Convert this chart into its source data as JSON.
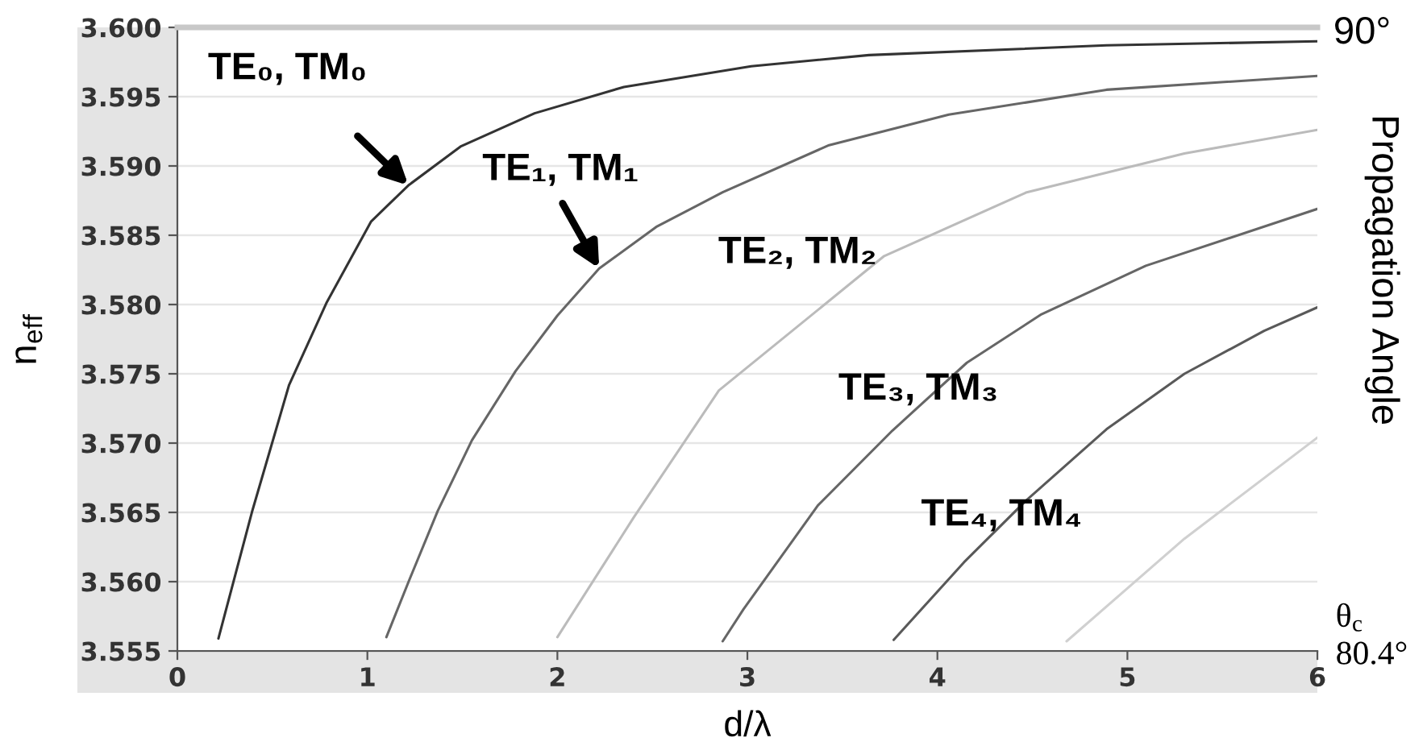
{
  "chart_data": {
    "type": "line",
    "xlabel": "d/λ",
    "ylabel": "n$_{eff}$",
    "xlim": [
      0,
      6
    ],
    "ylim": [
      3.555,
      3.6
    ],
    "xticks": [
      0,
      1,
      2,
      3,
      4,
      5,
      6
    ],
    "yticks": [
      {
        "value": 3.555,
        "label": "3.555"
      },
      {
        "value": 3.56,
        "label": "3.560"
      },
      {
        "value": 3.565,
        "label": "3.565"
      },
      {
        "value": 3.57,
        "label": "3.570"
      },
      {
        "value": 3.575,
        "label": "3.575"
      },
      {
        "value": 3.58,
        "label": "3.580"
      },
      {
        "value": 3.585,
        "label": "3.585"
      },
      {
        "value": 3.59,
        "label": "3.590"
      },
      {
        "value": 3.595,
        "label": "3.595"
      },
      {
        "value": 3.6,
        "label": "3.600"
      }
    ],
    "grid": "y",
    "line_style": "solid",
    "marker": "none",
    "series": [
      {
        "color": "#333333",
        "x": [
          0.216,
          0.392,
          0.588,
          0.784,
          1.02,
          1.216,
          1.49,
          1.88,
          2.35,
          3.02,
          3.64,
          4.89,
          6.0
        ],
        "values": [
          3.5559,
          3.565,
          3.5742,
          3.5801,
          3.586,
          3.5886,
          3.5914,
          3.5938,
          3.5957,
          3.5972,
          3.598,
          3.5987,
          3.599
        ]
      },
      {
        "color": "#666666",
        "x": [
          1.1,
          1.22,
          1.37,
          1.55,
          1.78,
          2.0,
          2.22,
          2.52,
          2.87,
          3.43,
          4.06,
          4.89,
          6.0
        ],
        "values": [
          3.556,
          3.5601,
          3.5651,
          3.5702,
          3.5752,
          3.5792,
          3.5826,
          3.5856,
          3.5881,
          3.5915,
          3.5937,
          3.5955,
          3.5965
        ]
      },
      {
        "color": "#bbbbbb",
        "x": [
          2.0,
          2.4,
          2.85,
          3.72,
          4.47,
          5.3,
          6.0
        ],
        "values": [
          3.556,
          3.5646,
          3.5738,
          3.5835,
          3.5881,
          3.5909,
          3.5926
        ]
      },
      {
        "color": "#666666",
        "x": [
          2.87,
          2.979,
          3.371,
          3.763,
          4.155,
          4.548,
          5.097,
          6.0
        ],
        "values": [
          3.5557,
          3.558,
          3.5655,
          3.5709,
          3.5758,
          3.5793,
          3.5828,
          3.5869
        ]
      },
      {
        "color": "#595959",
        "x": [
          3.77,
          4.14,
          4.47,
          4.89,
          5.3,
          5.72,
          6.0
        ],
        "values": [
          3.5558,
          3.5614,
          3.5659,
          3.571,
          3.575,
          3.5781,
          3.5798
        ]
      },
      {
        "color": "#d0d0d0",
        "x": [
          4.68,
          5.3,
          6.0
        ],
        "values": [
          3.5557,
          3.5631,
          3.5704
        ]
      }
    ],
    "annotations": [
      {
        "text": "TE₀, TM₀",
        "x": 1.216,
        "y": 3.5886
      },
      {
        "text": "TE₁, TM₁",
        "x": 2.22,
        "y": 3.5826
      },
      "TE₂, TM₂",
      "TE₃, TM₃",
      "TE₄, TM₄",
      "90°",
      "Propagation Angle",
      "θ$_{c}$",
      "80.4°"
    ]
  }
}
